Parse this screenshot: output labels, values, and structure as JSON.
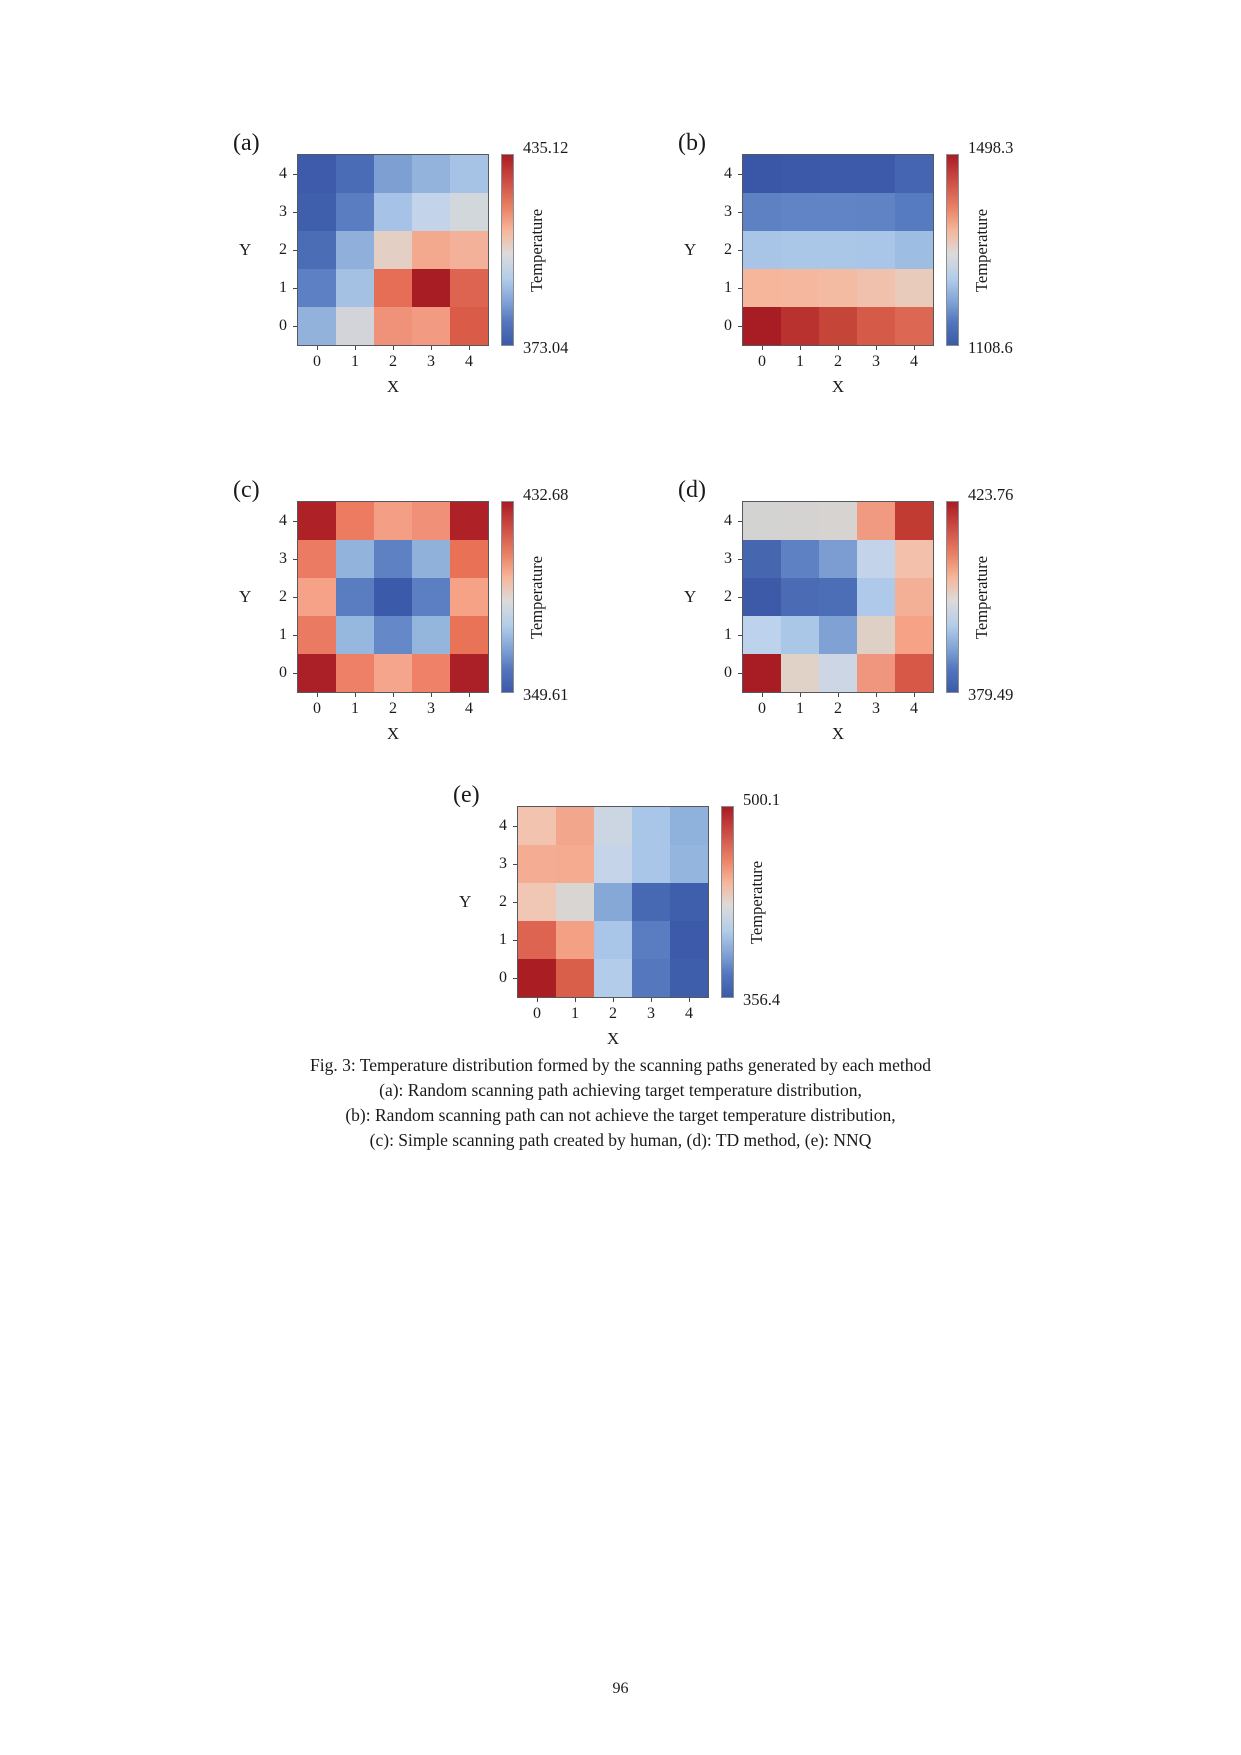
{
  "page": {
    "number": "96"
  },
  "axes": {
    "x_label": "X",
    "y_label": "Y",
    "x_ticks": [
      "0",
      "1",
      "2",
      "3",
      "4"
    ],
    "y_ticks": [
      "4",
      "3",
      "2",
      "1",
      "0"
    ],
    "colorbar_label": "Temperature"
  },
  "caption": {
    "line1": "Fig. 3: Temperature distribution formed by the scanning paths generated by each method",
    "line2": "(a): Random scanning path achieving target temperature distribution,",
    "line3": "(b): Random scanning path can not achieve the target temperature distribution,",
    "line4": "(c): Simple scanning path created by human, (d): TD method, (e): NNQ"
  },
  "chart_data": [
    {
      "type": "heatmap",
      "panel": "(a)",
      "title": "Random scanning path achieving target temperature distribution",
      "xlabel": "X",
      "ylabel": "Y",
      "x": [
        0,
        1,
        2,
        3,
        4
      ],
      "y_top_to_bottom": [
        4,
        3,
        2,
        1,
        0
      ],
      "colorbar": {
        "label": "Temperature",
        "max": "435.12",
        "min": "373.04"
      },
      "rows_top_to_bottom": [
        [
          "#3d5baa",
          "#4a6cb6",
          "#7e9fd2",
          "#93b3dc",
          "#a6c2e4"
        ],
        [
          "#3f5eac",
          "#5a7cc0",
          "#a6c2e6",
          "#c2d3ea",
          "#d2d7dc"
        ],
        [
          "#4b6db6",
          "#90afda",
          "#e3cfc3",
          "#f3a98e",
          "#f2b198"
        ],
        [
          "#5d80c4",
          "#a4c1e4",
          "#e66d56",
          "#a81c24",
          "#dd6450"
        ],
        [
          "#92b2dc",
          "#d2d4da",
          "#f0917a",
          "#f29b82",
          "#d95b48"
        ]
      ]
    },
    {
      "type": "heatmap",
      "panel": "(b)",
      "title": "Random scanning path can not achieve the target temperature distribution",
      "xlabel": "X",
      "ylabel": "Y",
      "x": [
        0,
        1,
        2,
        3,
        4
      ],
      "y_top_to_bottom": [
        4,
        3,
        2,
        1,
        0
      ],
      "colorbar": {
        "label": "Temperature",
        "max": "1498.3",
        "min": "1108.6"
      },
      "rows_top_to_bottom": [
        [
          "#3a56a6",
          "#3c58a8",
          "#3d59a9",
          "#3d59a9",
          "#4564b2"
        ],
        [
          "#5e81c4",
          "#6184c6",
          "#6184c6",
          "#6083c5",
          "#577bc0"
        ],
        [
          "#a8c4e6",
          "#abc7e8",
          "#abc7e8",
          "#a9c5e7",
          "#9ebde2"
        ],
        [
          "#f5b69b",
          "#f5b89e",
          "#f4bba3",
          "#f0c2ae",
          "#e9cbbc"
        ],
        [
          "#a81c24",
          "#b93230",
          "#c64539",
          "#d55a47",
          "#dc6853"
        ]
      ]
    },
    {
      "type": "heatmap",
      "panel": "(c)",
      "title": "Simple scanning path created by human",
      "xlabel": "X",
      "ylabel": "Y",
      "x": [
        0,
        1,
        2,
        3,
        4
      ],
      "y_top_to_bottom": [
        4,
        3,
        2,
        1,
        0
      ],
      "colorbar": {
        "label": "Temperature",
        "max": "432.68",
        "min": "349.61"
      },
      "rows_top_to_bottom": [
        [
          "#ad2127",
          "#ec7b61",
          "#f49e85",
          "#f19078",
          "#ad2127"
        ],
        [
          "#ec7b63",
          "#92b4dc",
          "#5e81c4",
          "#8fb1da",
          "#e97256"
        ],
        [
          "#f5a289",
          "#5a7dc2",
          "#3b5aa9",
          "#5c7fc3",
          "#f5a286"
        ],
        [
          "#eb7a62",
          "#97b8de",
          "#6488c8",
          "#94b6dc",
          "#e97356"
        ],
        [
          "#ab2026",
          "#ed8066",
          "#f5a58c",
          "#ee8168",
          "#ab2026"
        ]
      ]
    },
    {
      "type": "heatmap",
      "panel": "(d)",
      "title": "TD method",
      "xlabel": "X",
      "ylabel": "Y",
      "x": [
        0,
        1,
        2,
        3,
        4
      ],
      "y_top_to_bottom": [
        4,
        3,
        2,
        1,
        0
      ],
      "colorbar": {
        "label": "Temperature",
        "max": "423.76",
        "min": "379.49"
      },
      "rows_top_to_bottom": [
        [
          "#d3d3d2",
          "#d4d3d2",
          "#d6d3d0",
          "#f09a82",
          "#c23b33"
        ],
        [
          "#4766b0",
          "#5e81c4",
          "#7b9dd2",
          "#c3d3e9",
          "#f2c0ab"
        ],
        [
          "#3d5aa9",
          "#4b6cb5",
          "#4c6eb7",
          "#aec9e9",
          "#f4b096"
        ],
        [
          "#bdd2ec",
          "#abc7e8",
          "#7fa1d4",
          "#ded0c5",
          "#f5a287"
        ],
        [
          "#a81c24",
          "#e0d2c6",
          "#ccd6e4",
          "#f0967e",
          "#d75847"
        ]
      ]
    },
    {
      "type": "heatmap",
      "panel": "(e)",
      "title": "NNQ",
      "xlabel": "X",
      "ylabel": "Y",
      "x": [
        0,
        1,
        2,
        3,
        4
      ],
      "y_top_to_bottom": [
        4,
        3,
        2,
        1,
        0
      ],
      "colorbar": {
        "label": "Temperature",
        "max": "500.1",
        "min": "356.4"
      },
      "rows_top_to_bottom": [
        [
          "#f2c4b0",
          "#f2a68b",
          "#ccd6e3",
          "#a9c6e8",
          "#8fb2dc"
        ],
        [
          "#f4ad92",
          "#f4ab90",
          "#c5d4e9",
          "#a9c6e8",
          "#93b5de"
        ],
        [
          "#f0c6b4",
          "#d8d5d3",
          "#86a8d6",
          "#4768b2",
          "#3f5fad"
        ],
        [
          "#dd6450",
          "#f3a084",
          "#a9c6e8",
          "#5a7dc2",
          "#3c5aa9"
        ],
        [
          "#a91d23",
          "#d95f4b",
          "#b2cce9",
          "#5577bd",
          "#3e5dab"
        ]
      ]
    }
  ]
}
